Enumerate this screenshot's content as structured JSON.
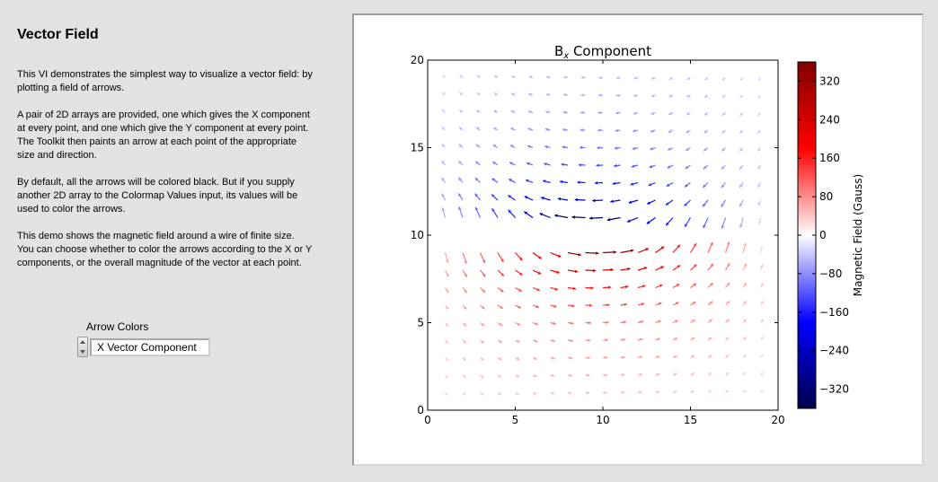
{
  "panel": {
    "title": "Vector Field",
    "paragraphs": [
      "This VI demonstrates the simplest way to visualize a vector field: by plotting a field of arrows.",
      "A pair of 2D arrays are provided, one which gives the X component at every point, and one which give the Y component at every point.  The Toolkit then paints an arrow at each point of the appropriate size and direction.",
      "By default, all the arrows will be colored black.  But if you supply another 2D array to the Colormap Values input, its values will be used to color the arrows.",
      "This demo shows the magnetic field around a wire of finite size.  You can choose whether to color the arrows according to the X or Y components, or the overall magnitude of the vector at each point."
    ]
  },
  "arrow_colors": {
    "label": "Arrow Colors",
    "value": "X Vector Component"
  },
  "chart_data": {
    "type": "quiver",
    "title_prefix": "B",
    "title_subscript": "x",
    "title_suffix": " Component",
    "xlim": [
      0,
      20
    ],
    "ylim": [
      0,
      20
    ],
    "xticks": [
      "0",
      "5",
      "10",
      "15",
      "20"
    ],
    "yticks": [
      "0",
      "5",
      "10",
      "15",
      "20"
    ],
    "grid": {
      "x": [
        1,
        2,
        3,
        4,
        5,
        6,
        7,
        8,
        9,
        10,
        11,
        12,
        13,
        14,
        15,
        16,
        17,
        18,
        19
      ],
      "y": [
        1,
        2,
        3,
        4,
        5,
        6,
        7,
        8,
        9,
        10,
        11,
        12,
        13,
        14,
        15,
        16,
        17,
        18,
        19
      ]
    },
    "field_model": {
      "wire_x": 9.5,
      "wire_y": 10,
      "wire_half_length": 9
    },
    "grid_on": false,
    "colorbar": {
      "label": "Magnetic Field (Gauss)",
      "range": [
        -360,
        360
      ],
      "ticks": [
        "320",
        "240",
        "160",
        "80",
        "0",
        "−80",
        "−160",
        "−240",
        "−320"
      ],
      "tick_values": [
        320,
        240,
        160,
        80,
        0,
        -80,
        -160,
        -240,
        -320
      ],
      "colormap": "seismic",
      "colors": {
        "low": "#00004c",
        "mid_low": "#0000ff",
        "center": "#ffffff",
        "mid_high": "#ff0000",
        "high": "#800000"
      }
    }
  }
}
